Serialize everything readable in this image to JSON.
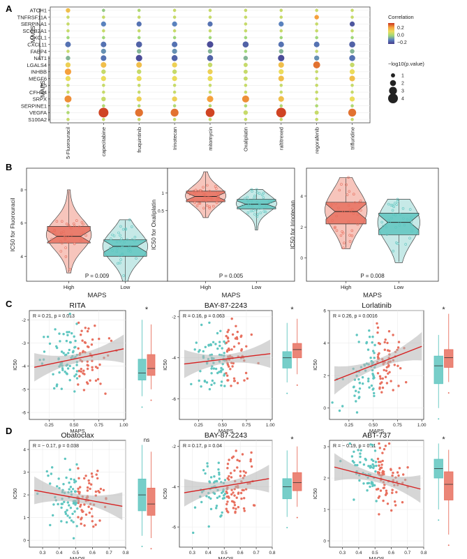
{
  "panel_labels": {
    "a": "A",
    "b": "B",
    "c": "C",
    "d": "D"
  },
  "chart_data": [
    {
      "id": "A",
      "type": "scatter",
      "subtype": "dot-heatmap",
      "genes": [
        "ATOH1",
        "TNFRSF11A",
        "SERPINA1",
        "SCGB2A1",
        "CXCL1",
        "CXCL11",
        "FABP4",
        "NAT1",
        "LGALS4",
        "INHBB",
        "MEGF6",
        "F5",
        "CFHR4",
        "SRPX",
        "SERPINE1",
        "VEGFA",
        "S100A2"
      ],
      "drugs": [
        "5-Fluorouracil",
        "capecitabine",
        "fruquintinib",
        "Irinotecan",
        "mitomycin",
        "Oxaliplatin",
        "raltitrexed",
        "regorafenib",
        "trifluridine"
      ],
      "group_labels": {
        "maos": "MAOS",
        "maps": "MAPS"
      },
      "maos_genes": 8,
      "correlation": [
        [
          0.15,
          -0.02,
          0.02,
          0.05,
          0.05,
          0.05,
          0.05,
          0.05,
          0.05
        ],
        [
          0.05,
          0.05,
          0.05,
          0.05,
          0.05,
          0.05,
          0.05,
          0.2,
          0.05
        ],
        [
          0.05,
          -0.12,
          -0.15,
          -0.12,
          -0.15,
          0.05,
          -0.12,
          0.05,
          -0.2
        ],
        [
          0.05,
          0.05,
          0.05,
          0.05,
          0.05,
          0.05,
          0.05,
          0.05,
          0.05
        ],
        [
          0.0,
          0.0,
          0.0,
          0.0,
          0.0,
          0.0,
          0.0,
          0.0,
          0.0
        ],
        [
          -0.15,
          -0.15,
          -0.18,
          -0.15,
          -0.22,
          -0.18,
          -0.15,
          -0.15,
          -0.18
        ],
        [
          0.05,
          -0.1,
          -0.05,
          -0.1,
          -0.05,
          0.0,
          -0.05,
          0.05,
          -0.05
        ],
        [
          -0.05,
          -0.15,
          -0.22,
          -0.18,
          -0.18,
          -0.05,
          -0.22,
          -0.1,
          -0.15
        ],
        [
          0.12,
          0.15,
          0.15,
          0.12,
          0.05,
          0.05,
          0.15,
          0.25,
          0.05
        ],
        [
          0.2,
          0.05,
          0.05,
          0.05,
          0.12,
          0.05,
          0.1,
          0.05,
          0.1
        ],
        [
          0.1,
          0.1,
          0.1,
          0.1,
          0.1,
          0.05,
          0.15,
          0.05,
          0.15
        ],
        [
          0.05,
          0.05,
          0.05,
          0.05,
          0.05,
          0.05,
          0.05,
          0.05,
          0.05
        ],
        [
          0.05,
          0.05,
          0.05,
          0.05,
          0.05,
          0.05,
          0.05,
          0.05,
          0.05
        ],
        [
          0.22,
          0.05,
          0.12,
          0.12,
          0.2,
          0.22,
          0.15,
          0.05,
          0.1
        ],
        [
          0.02,
          0.02,
          0.02,
          0.02,
          0.02,
          0.02,
          0.02,
          0.02,
          0.02
        ],
        [
          0.02,
          0.3,
          0.25,
          0.25,
          0.3,
          0.05,
          0.3,
          0.05,
          0.25
        ],
        [
          0.05,
          0.05,
          0.05,
          0.05,
          0.05,
          0.05,
          0.05,
          0.05,
          0.05
        ]
      ],
      "neglog10p": [
        [
          1.2,
          0.5,
          0.5,
          0.5,
          0.5,
          0.5,
          0.5,
          0.5,
          0.5
        ],
        [
          0.5,
          0.5,
          0.5,
          0.5,
          0.5,
          0.5,
          0.5,
          1.2,
          0.5
        ],
        [
          0.5,
          1.5,
          1.5,
          1.5,
          1.5,
          0.5,
          1.5,
          0.5,
          1.5
        ],
        [
          0.5,
          0.5,
          0.5,
          0.5,
          0.5,
          0.5,
          0.5,
          0.5,
          0.5
        ],
        [
          0.5,
          0.5,
          0.5,
          0.5,
          0.5,
          0.5,
          0.5,
          0.5,
          0.5
        ],
        [
          1.8,
          1.8,
          2,
          1.8,
          2.2,
          2,
          1.8,
          1.8,
          2
        ],
        [
          0.5,
          1.5,
          1.2,
          1.5,
          1.2,
          0.5,
          1.2,
          0.5,
          1.2
        ],
        [
          1.2,
          1.8,
          2.2,
          2,
          2,
          1.2,
          2.2,
          1.5,
          2
        ],
        [
          1.5,
          1.8,
          1.8,
          1.5,
          1.2,
          1,
          1.8,
          2.5,
          1.2
        ],
        [
          2.2,
          1.2,
          1.2,
          1.2,
          1.5,
          1,
          1.5,
          0.5,
          1.5
        ],
        [
          1.5,
          1.5,
          1.5,
          1.5,
          1.5,
          1,
          1.8,
          0.5,
          1.8
        ],
        [
          0.5,
          0.5,
          0.5,
          0.5,
          0.5,
          0.5,
          0.5,
          0.5,
          0.5
        ],
        [
          0.5,
          0.5,
          0.5,
          0.5,
          0.5,
          0.5,
          0.5,
          0.5,
          0.5
        ],
        [
          2.5,
          1.2,
          1.5,
          1.5,
          2.2,
          2.5,
          1.8,
          0.5,
          1.5
        ],
        [
          0.5,
          0.5,
          0.5,
          0.5,
          0.5,
          0.5,
          0.5,
          0.5,
          0.5
        ],
        [
          0.5,
          4,
          3,
          3,
          3.5,
          1.2,
          4,
          1,
          3
        ],
        [
          0.5,
          0.5,
          0.5,
          0.5,
          0.5,
          0.5,
          0.5,
          0.5,
          0.5
        ]
      ],
      "legend_corr_title": "Correlation",
      "legend_corr_ticks": [
        {
          "v": 0.2,
          "label": "0.2"
        },
        {
          "v": 0.0,
          "label": "0.0"
        },
        {
          "v": -0.2,
          "label": "−0.2"
        }
      ],
      "legend_p_title": "−log10(p.value)",
      "legend_p_values": [
        1,
        2,
        3,
        4
      ]
    },
    {
      "id": "B",
      "type": "violin",
      "xlabel": "MAPS",
      "categories": [
        "High",
        "Low"
      ],
      "plots": [
        {
          "ylabel": "IC50 for Fluorouracil",
          "yticks": [
            4,
            6,
            8
          ],
          "ylim": [
            2.5,
            9.3
          ],
          "p": "P = 0.009",
          "high": {
            "q1": 4.8,
            "med": 5.2,
            "q3": 5.8,
            "min": 3.0,
            "max": 8.0,
            "mode": 5.3
          },
          "low": {
            "q1": 4.0,
            "med": 4.6,
            "q3": 5.0,
            "min": 2.5,
            "max": 6.2,
            "mode": 4.6
          }
        },
        {
          "ylabel": "IC50 for Oxaliplatin",
          "yticks": [
            0.5,
            1.0
          ],
          "ylim": [
            -1.5,
            1.7
          ],
          "p": "P = 0.005",
          "high": {
            "q1": 0.75,
            "med": 0.9,
            "q3": 1.05,
            "min": 0.3,
            "max": 1.6,
            "mode": 0.92
          },
          "low": {
            "q1": 0.55,
            "med": 0.68,
            "q3": 0.82,
            "min": -0.05,
            "max": 1.1,
            "mode": 0.7
          }
        },
        {
          "ylabel": "IC50 for Irinotecan",
          "yticks": [
            0,
            2,
            4
          ],
          "ylim": [
            -1.5,
            5.8
          ],
          "p": "P = 0.008",
          "high": {
            "q1": 2.2,
            "med": 3.0,
            "q3": 3.6,
            "min": 0.6,
            "max": 5.2,
            "mode": 3.1
          },
          "low": {
            "q1": 1.5,
            "med": 2.3,
            "q3": 2.9,
            "min": -0.3,
            "max": 3.8,
            "mode": 2.3
          }
        }
      ]
    },
    {
      "id": "C",
      "type": "scatter",
      "xlabel": "MAPS",
      "ylabel": "IC50",
      "plots": [
        {
          "title": "RITA",
          "stat": "R = 0.21, p = 0.013",
          "xlim": [
            0.05,
            1.02
          ],
          "xticks": [
            0.25,
            0.5,
            0.75,
            1.0
          ],
          "xticklabels": [
            "0.25",
            "0.50",
            "0.75",
            "1.00"
          ],
          "ylim": [
            -6.3,
            -1.6
          ],
          "yticks": [
            -6,
            -5,
            -4,
            -3,
            -2
          ],
          "line": [
            [
              0.1,
              -4.05
            ],
            [
              1.0,
              -3.25
            ]
          ],
          "box_sig": "*",
          "box_low": {
            "q1": -4.6,
            "med": -4.3,
            "q3": -3.7,
            "min": -5.3,
            "max": -2.0
          },
          "box_high": {
            "q1": -4.4,
            "med": -4.1,
            "q3": -3.5,
            "min": -5.0,
            "max": -2.2
          }
        },
        {
          "title": "BAY-87-2243",
          "stat": "R = 0.16, p = 0.063",
          "xlim": [
            0.05,
            1.02
          ],
          "xticks": [
            0.25,
            0.5,
            0.75,
            1.0
          ],
          "xticklabels": [
            "0.25",
            "0.50",
            "0.75",
            "1.00"
          ],
          "ylim": [
            -7.0,
            -1.7
          ],
          "yticks": [
            -6,
            -4,
            -2
          ],
          "line": [
            [
              0.1,
              -4.3
            ],
            [
              1.0,
              -3.8
            ]
          ],
          "box_sig": "*",
          "box_low": {
            "q1": -4.5,
            "med": -4.0,
            "q3": -3.7,
            "min": -5.2,
            "max": -2.3
          },
          "box_high": {
            "q1": -4.0,
            "med": -3.6,
            "q3": -3.3,
            "min": -4.8,
            "max": -2.1
          }
        },
        {
          "title": "Lorlatinib",
          "stat": "R = 0.26, p = 0.0016",
          "xlim": [
            0.05,
            1.02
          ],
          "xticks": [
            0.25,
            0.5,
            0.75,
            1.0
          ],
          "xticklabels": [
            "0.25",
            "0.50",
            "0.75",
            "1.00"
          ],
          "ylim": [
            -0.7,
            6.0
          ],
          "yticks": [
            0,
            2,
            4,
            6
          ],
          "line": [
            [
              0.1,
              1.7
            ],
            [
              1.0,
              3.8
            ]
          ],
          "box_sig": "*",
          "box_low": {
            "q1": 1.5,
            "med": 2.6,
            "q3": 3.2,
            "min": 0.0,
            "max": 4.5
          },
          "box_high": {
            "q1": 2.5,
            "med": 3.1,
            "q3": 3.6,
            "min": 1.6,
            "max": 5.8
          }
        }
      ]
    },
    {
      "id": "D",
      "type": "scatter",
      "xlabel": "MAOS",
      "ylabel": "IC50",
      "plots": [
        {
          "title": "Obatoclax",
          "stat": "R = − 0.17, p = 0.038",
          "xlim": [
            0.22,
            0.8
          ],
          "xticks": [
            0.3,
            0.4,
            0.5,
            0.6,
            0.7,
            0.8
          ],
          "xticklabels": [
            "0.3",
            "0.4",
            "0.5",
            "0.6",
            "0.7",
            "0.8"
          ],
          "ylim": [
            -0.3,
            4.4
          ],
          "yticks": [
            0,
            1,
            2,
            3,
            4
          ],
          "line": [
            [
              0.25,
              2.2
            ],
            [
              0.78,
              1.5
            ]
          ],
          "box_sig": "ns",
          "box_low": {
            "q1": 1.3,
            "med": 2.0,
            "q3": 2.7,
            "min": 0.2,
            "max": 4.2
          },
          "box_high": {
            "q1": 1.1,
            "med": 1.6,
            "q3": 2.3,
            "min": 0.1,
            "max": 3.9
          }
        },
        {
          "title": "BAY-87-2243",
          "stat": "R = 0.17, p = 0.04",
          "xlim": [
            0.22,
            0.8
          ],
          "xticks": [
            0.3,
            0.4,
            0.5,
            0.6,
            0.7,
            0.8
          ],
          "xticklabels": [
            "0.3",
            "0.4",
            "0.5",
            "0.6",
            "0.7",
            "0.8"
          ],
          "ylim": [
            -7.0,
            -1.7
          ],
          "yticks": [
            -6,
            -4,
            -2
          ],
          "line": [
            [
              0.25,
              -4.3
            ],
            [
              0.78,
              -3.6
            ]
          ],
          "box_sig": "*",
          "box_low": {
            "q1": -4.6,
            "med": -4.0,
            "q3": -3.6,
            "min": -5.5,
            "max": -2.2
          },
          "box_high": {
            "q1": -4.2,
            "med": -3.8,
            "q3": -3.3,
            "min": -5.0,
            "max": -2.0
          }
        },
        {
          "title": "ABT-737",
          "stat": "R = − 0.19, p = 0.11",
          "xlim": [
            0.22,
            0.8
          ],
          "xticks": [
            0.3,
            0.4,
            0.5,
            0.6,
            0.7,
            0.8
          ],
          "xticklabels": [
            "0.3",
            "0.4",
            "0.5",
            "0.6",
            "0.7",
            "0.8"
          ],
          "ylim": [
            -0.2,
            3.2
          ],
          "yticks": [
            0,
            1,
            2,
            3
          ],
          "line": [
            [
              0.25,
              2.35
            ],
            [
              0.78,
              1.65
            ]
          ],
          "box_sig": "*",
          "box_low": {
            "q1": 2.0,
            "med": 2.3,
            "q3": 2.6,
            "min": 1.0,
            "max": 3.1
          },
          "box_high": {
            "q1": 1.3,
            "med": 1.8,
            "q3": 2.2,
            "min": 0.2,
            "max": 2.9
          }
        }
      ]
    }
  ],
  "colors": {
    "high": "#e8705f",
    "high_fill": "#f4b1a5",
    "low": "#5fc6c0",
    "low_fill": "#b3e2df",
    "line": "#d62020",
    "band": "#b5b5b5",
    "grid": "#ebebeb"
  }
}
